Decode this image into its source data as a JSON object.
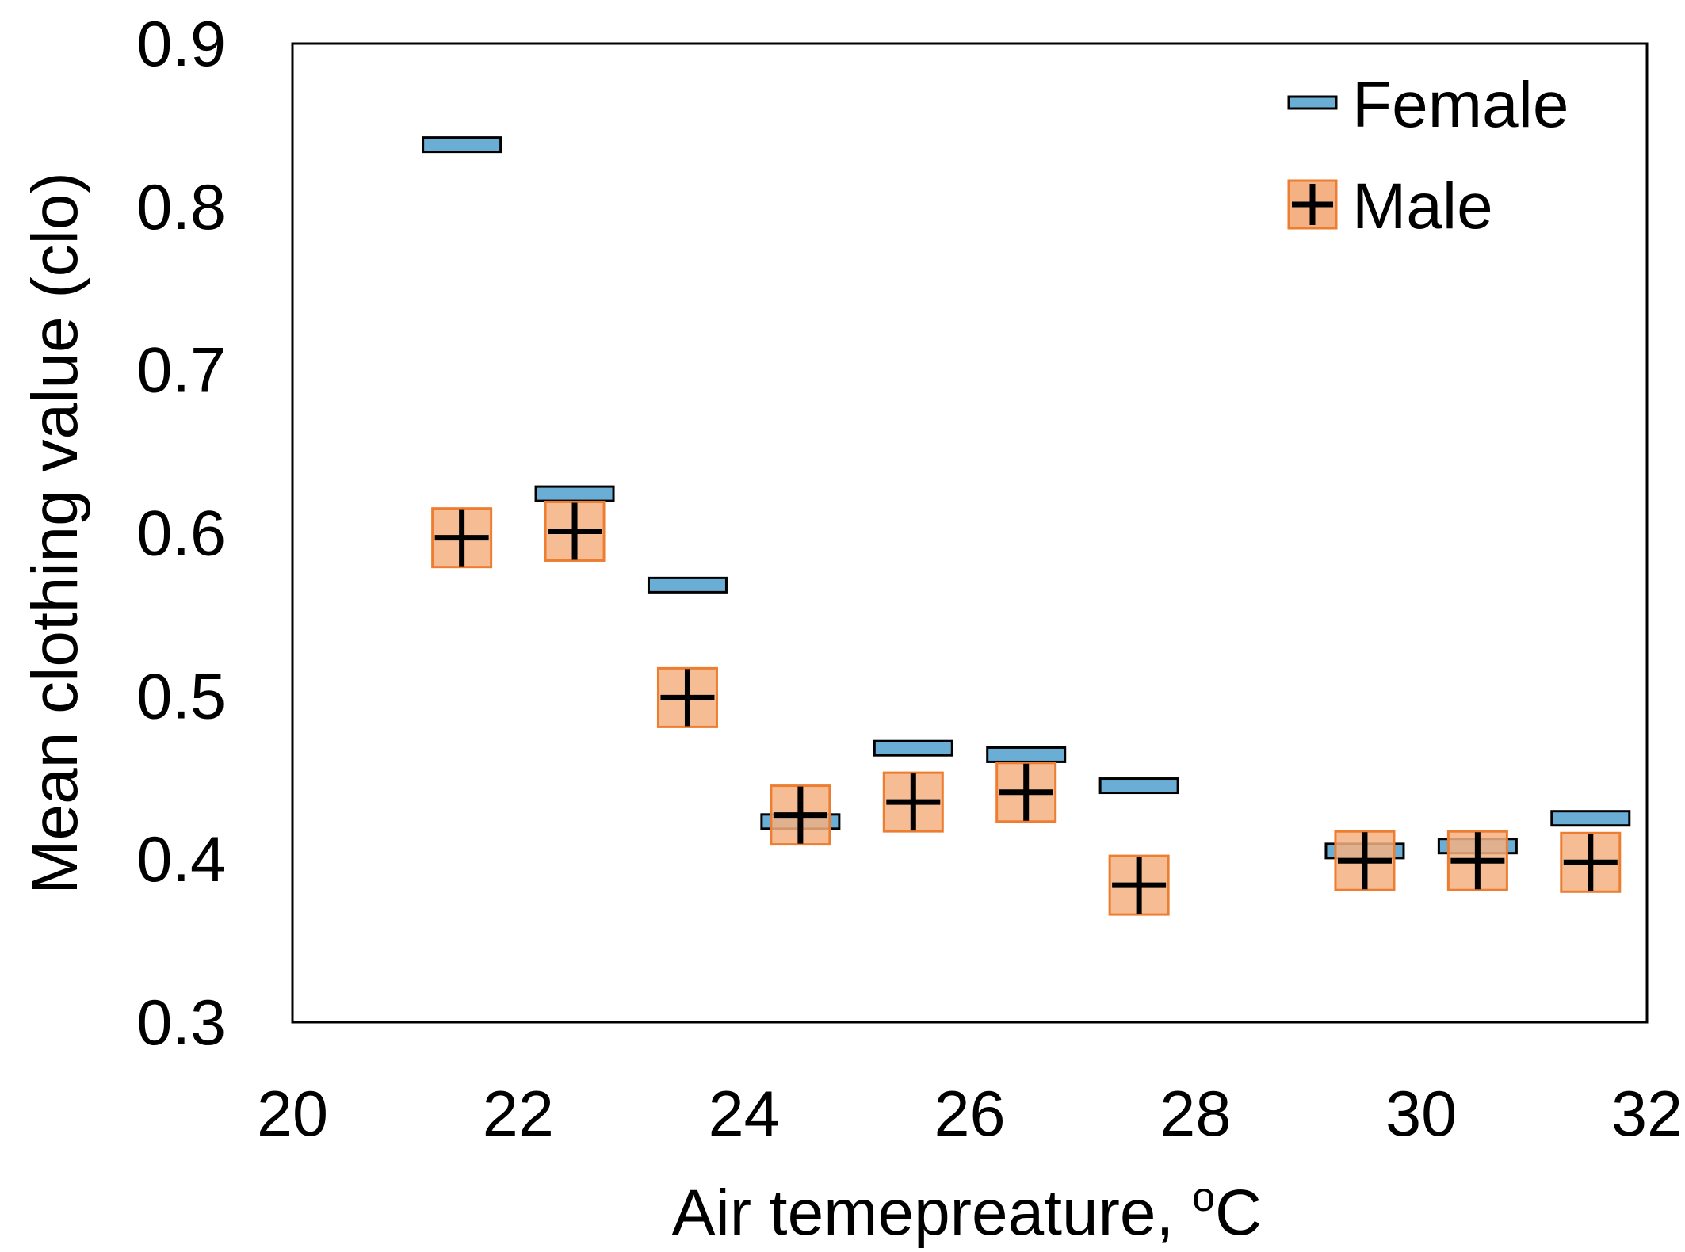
{
  "chart_data": {
    "type": "scatter",
    "title": "",
    "xlabel": "Air temepreature, ",
    "xlabel_sup": "o",
    "xlabel_unit": "C",
    "ylabel": "Mean clothing value (clo)",
    "xlim": [
      20,
      32
    ],
    "ylim": [
      0.3,
      0.9
    ],
    "x_ticks": [
      "20",
      "22",
      "24",
      "26",
      "28",
      "30",
      "32"
    ],
    "y_ticks": [
      "0.3",
      "0.4",
      "0.5",
      "0.6",
      "0.7",
      "0.8",
      "0.9"
    ],
    "grid": false,
    "legend_position": "top-right",
    "series": [
      {
        "name": "Female",
        "marker": "horizontal-bar",
        "color": "#6aaed6",
        "x": [
          21.5,
          22.5,
          23.5,
          24.5,
          25.5,
          26.5,
          27.5,
          29.5,
          30.5,
          31.5
        ],
        "y": [
          0.838,
          0.624,
          0.568,
          0.423,
          0.468,
          0.464,
          0.445,
          0.405,
          0.408,
          0.425
        ]
      },
      {
        "name": "Male",
        "marker": "plus-square",
        "color": "#f4b183",
        "edge_color": "#ed7d31",
        "x": [
          21.5,
          22.5,
          23.5,
          24.5,
          25.5,
          26.5,
          27.5,
          29.5,
          30.5,
          31.5
        ],
        "y": [
          0.597,
          0.601,
          0.499,
          0.427,
          0.435,
          0.441,
          0.384,
          0.399,
          0.399,
          0.398
        ]
      }
    ]
  }
}
